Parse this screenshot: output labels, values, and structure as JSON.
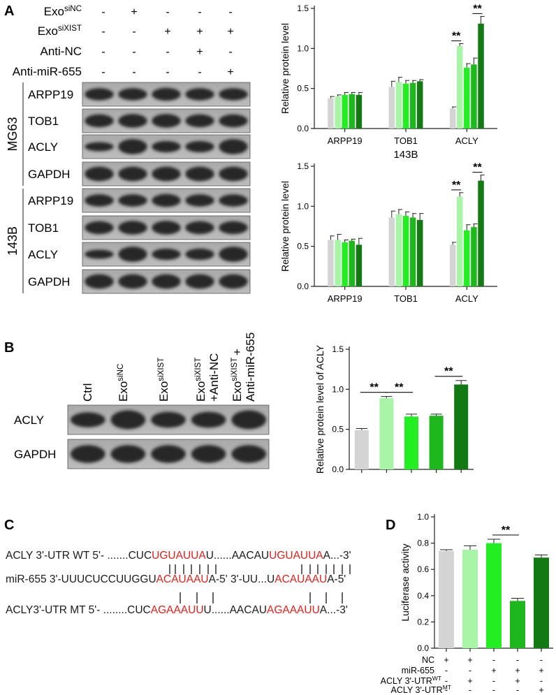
{
  "panels": {
    "A": {
      "letter": "A",
      "conditions": [
        {
          "label": "Exo",
          "sup": "siNC",
          "signs": [
            "-",
            "+",
            "-",
            "-",
            "-"
          ]
        },
        {
          "label": "Exo",
          "sup": "siXIST",
          "signs": [
            "-",
            "-",
            "+",
            "+",
            "+"
          ]
        },
        {
          "label": "Anti-NC",
          "sup": "",
          "signs": [
            "-",
            "-",
            "-",
            "+",
            "-"
          ]
        },
        {
          "label": "Anti-miR-655",
          "sup": "",
          "signs": [
            "-",
            "-",
            "-",
            "-",
            "+"
          ]
        }
      ],
      "blot_groups": [
        {
          "cell": "MG63",
          "rows": [
            "ARPP19",
            "TOB1",
            "ACLY",
            "GAPDH"
          ]
        },
        {
          "cell": "143B",
          "rows": [
            "ARPP19",
            "TOB1",
            "ACLY",
            "GAPDH"
          ]
        }
      ]
    },
    "B": {
      "letter": "B",
      "lanes": [
        {
          "main": "Ctrl",
          "sup": "",
          "line2": ""
        },
        {
          "main": "Exo",
          "sup": "siNC",
          "line2": ""
        },
        {
          "main": "Exo",
          "sup": "siXIST",
          "line2": ""
        },
        {
          "main": "Exo",
          "sup": "siXIST",
          "line2": "+Anti-NC"
        },
        {
          "main": "Exo",
          "sup": "siXIST",
          "line2": "+",
          "line3": "Anti-miR-655"
        }
      ],
      "blot_rows": [
        "ACLY",
        "GAPDH"
      ]
    },
    "C": {
      "letter": "C",
      "lines": [
        {
          "segments": [
            {
              "text": "ACLY 3'-UTR WT 5'- .......CUC",
              "color": "#1a1a1a"
            },
            {
              "text": "UGUAUUA",
              "color": "#e0201b"
            },
            {
              "text": "U......AACAU",
              "color": "#1a1a1a"
            },
            {
              "text": "UGUAUUA",
              "color": "#e0201b"
            },
            {
              "text": "A...-3'",
              "color": "#1a1a1a"
            }
          ]
        },
        {
          "segments": [
            {
              "text": "miR-655 3'-UUUCUCCUUGGU",
              "color": "#1a1a1a"
            },
            {
              "text": "ACAUAAU",
              "color": "#e0201b"
            },
            {
              "text": "A-5' 3'-UU...U",
              "color": "#1a1a1a"
            },
            {
              "text": "ACAUAAU",
              "color": "#e0201b"
            },
            {
              "text": "A-5'",
              "color": "#1a1a1a"
            }
          ]
        },
        {
          "segments": [
            {
              "text": "ACLY3'-UTR MT 5'- ........CUC",
              "color": "#1a1a1a"
            },
            {
              "text": "AGAAAUU",
              "color": "#e0201b"
            },
            {
              "text": "U......AACAU",
              "color": "#1a1a1a"
            },
            {
              "text": "AGAAAUU",
              "color": "#e0201b"
            },
            {
              "text": "A...-3'",
              "color": "#1a1a1a"
            }
          ]
        }
      ]
    },
    "D": {
      "letter": "D",
      "conditions": [
        {
          "label": "NC",
          "sup": "",
          "signs": [
            "+",
            "+",
            "-",
            "-",
            "-"
          ]
        },
        {
          "label": "miR-655",
          "sup": "",
          "signs": [
            "-",
            "-",
            "+",
            "+",
            "+"
          ]
        },
        {
          "label": "ACLY 3'-UTR",
          "sup": "WT",
          "signs": [
            "-",
            "+",
            "-",
            "+",
            "-"
          ]
        },
        {
          "label": "ACLY 3'-UTR",
          "sup": "MT",
          "signs": [
            "-",
            "-",
            "-",
            "-",
            "+"
          ]
        }
      ]
    }
  },
  "colors": [
    "#d4d4d4",
    "#a8f5a8",
    "#22ee22",
    "#1eb81e",
    "#137a13"
  ],
  "chart_data": [
    {
      "type": "bar",
      "title": "MG63",
      "ylabel": "Relative protein level",
      "categories": [
        "ARPP19",
        "TOB1",
        "ACLY"
      ],
      "ylim": [
        0,
        1.5
      ],
      "yticks": [
        "0.0",
        "0.5",
        "1.0",
        "1.5"
      ],
      "series": [
        {
          "values": [
            0.38,
            0.52,
            0.25
          ],
          "errors": [
            0.02,
            0.07,
            0.02
          ]
        },
        {
          "values": [
            0.4,
            0.58,
            1.03
          ],
          "errors": [
            0.02,
            0.06,
            0.03
          ]
        },
        {
          "values": [
            0.42,
            0.56,
            0.76
          ],
          "errors": [
            0.03,
            0.04,
            0.05
          ]
        },
        {
          "values": [
            0.43,
            0.57,
            0.8
          ],
          "errors": [
            0.02,
            0.03,
            0.08
          ]
        },
        {
          "values": [
            0.42,
            0.59,
            1.31
          ],
          "errors": [
            0.03,
            0.02,
            0.09
          ]
        }
      ],
      "annotations": [
        {
          "text": "**",
          "from": [
            2,
            1
          ],
          "to": [
            2,
            1
          ]
        },
        {
          "text": "**",
          "from": [
            2,
            4
          ],
          "to": [
            2,
            4
          ]
        }
      ]
    },
    {
      "type": "bar",
      "title": "143B",
      "ylabel": "Relative protein level",
      "categories": [
        "ARPP19",
        "TOB1",
        "ACLY"
      ],
      "ylim": [
        0,
        1.5
      ],
      "yticks": [
        "0.0",
        "0.5",
        "1.0",
        "1.5"
      ],
      "series": [
        {
          "values": [
            0.58,
            0.86,
            0.52
          ],
          "errors": [
            0.05,
            0.08,
            0.03
          ]
        },
        {
          "values": [
            0.58,
            0.9,
            1.12
          ],
          "errors": [
            0.07,
            0.06,
            0.05
          ]
        },
        {
          "values": [
            0.55,
            0.88,
            0.7
          ],
          "errors": [
            0.03,
            0.05,
            0.07
          ]
        },
        {
          "values": [
            0.57,
            0.86,
            0.74
          ],
          "errors": [
            0.02,
            0.05,
            0.04
          ]
        },
        {
          "values": [
            0.52,
            0.83,
            1.32
          ],
          "errors": [
            0.08,
            0.08,
            0.07
          ]
        }
      ],
      "annotations": [
        {
          "text": "**"
        },
        {
          "text": "**"
        }
      ]
    },
    {
      "type": "bar",
      "title": "",
      "ylabel": "Relative protein level of ACLY",
      "categories": [
        "",
        "",
        "",
        "",
        ""
      ],
      "ylim": [
        0,
        1.5
      ],
      "yticks": [
        "0.0",
        "0.5",
        "1.0",
        "1.5"
      ],
      "values": [
        0.49,
        0.89,
        0.66,
        0.67,
        1.06
      ],
      "errors": [
        0.02,
        0.02,
        0.03,
        0.02,
        0.05
      ],
      "annotations": [
        {
          "text": "**",
          "between": [
            0,
            1
          ]
        },
        {
          "text": "**",
          "between": [
            1,
            2
          ]
        },
        {
          "text": "**",
          "between": [
            3,
            4
          ]
        }
      ]
    },
    {
      "type": "bar",
      "title": "",
      "ylabel": "Luciferase activity",
      "categories": [
        "",
        "",
        "",
        "",
        ""
      ],
      "ylim": [
        0,
        1.0
      ],
      "yticks": [
        "0.0",
        "0.2",
        "0.4",
        "0.6",
        "0.8",
        "1.0"
      ],
      "values": [
        0.74,
        0.75,
        0.8,
        0.36,
        0.69
      ],
      "errors": [
        0.01,
        0.03,
        0.03,
        0.02,
        0.02
      ],
      "annotations": [
        {
          "text": "**",
          "between": [
            2,
            3
          ]
        }
      ]
    }
  ]
}
